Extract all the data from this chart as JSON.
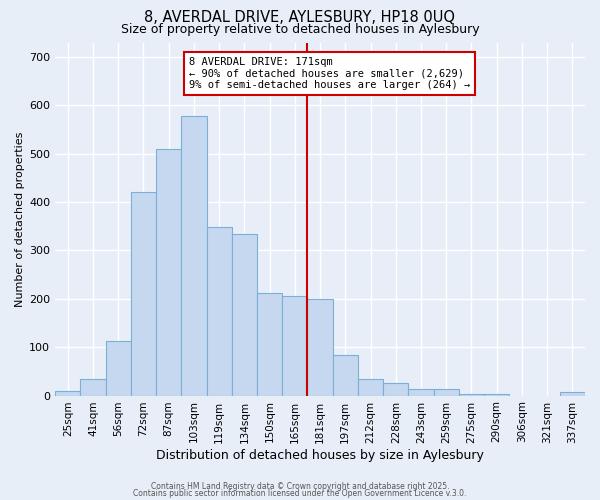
{
  "title": "8, AVERDAL DRIVE, AYLESBURY, HP18 0UQ",
  "subtitle": "Size of property relative to detached houses in Aylesbury",
  "xlabel": "Distribution of detached houses by size in Aylesbury",
  "ylabel": "Number of detached properties",
  "categories": [
    "25sqm",
    "41sqm",
    "56sqm",
    "72sqm",
    "87sqm",
    "103sqm",
    "119sqm",
    "134sqm",
    "150sqm",
    "165sqm",
    "181sqm",
    "197sqm",
    "212sqm",
    "228sqm",
    "243sqm",
    "259sqm",
    "275sqm",
    "290sqm",
    "306sqm",
    "321sqm",
    "337sqm"
  ],
  "values": [
    10,
    35,
    113,
    420,
    510,
    578,
    348,
    335,
    213,
    205,
    200,
    83,
    35,
    25,
    13,
    13,
    3,
    3,
    0,
    0,
    7
  ],
  "bar_color": "#c5d8f0",
  "bar_edge_color": "#7bafd4",
  "vline_color": "#cc0000",
  "vline_position": 9.5,
  "annotation_text": "8 AVERDAL DRIVE: 171sqm\n← 90% of detached houses are smaller (2,629)\n9% of semi-detached houses are larger (264) →",
  "annotation_box_edgecolor": "#cc0000",
  "annotation_bg": "#ffffff",
  "ylim": [
    0,
    730
  ],
  "yticks": [
    0,
    100,
    200,
    300,
    400,
    500,
    600,
    700
  ],
  "title_fontsize": 10.5,
  "subtitle_fontsize": 9,
  "xlabel_fontsize": 9,
  "ylabel_fontsize": 8,
  "background_color": "#e8eef8",
  "grid_color": "#ffffff",
  "footer_line1": "Contains HM Land Registry data © Crown copyright and database right 2025.",
  "footer_line2": "Contains public sector information licensed under the Open Government Licence v.3.0."
}
